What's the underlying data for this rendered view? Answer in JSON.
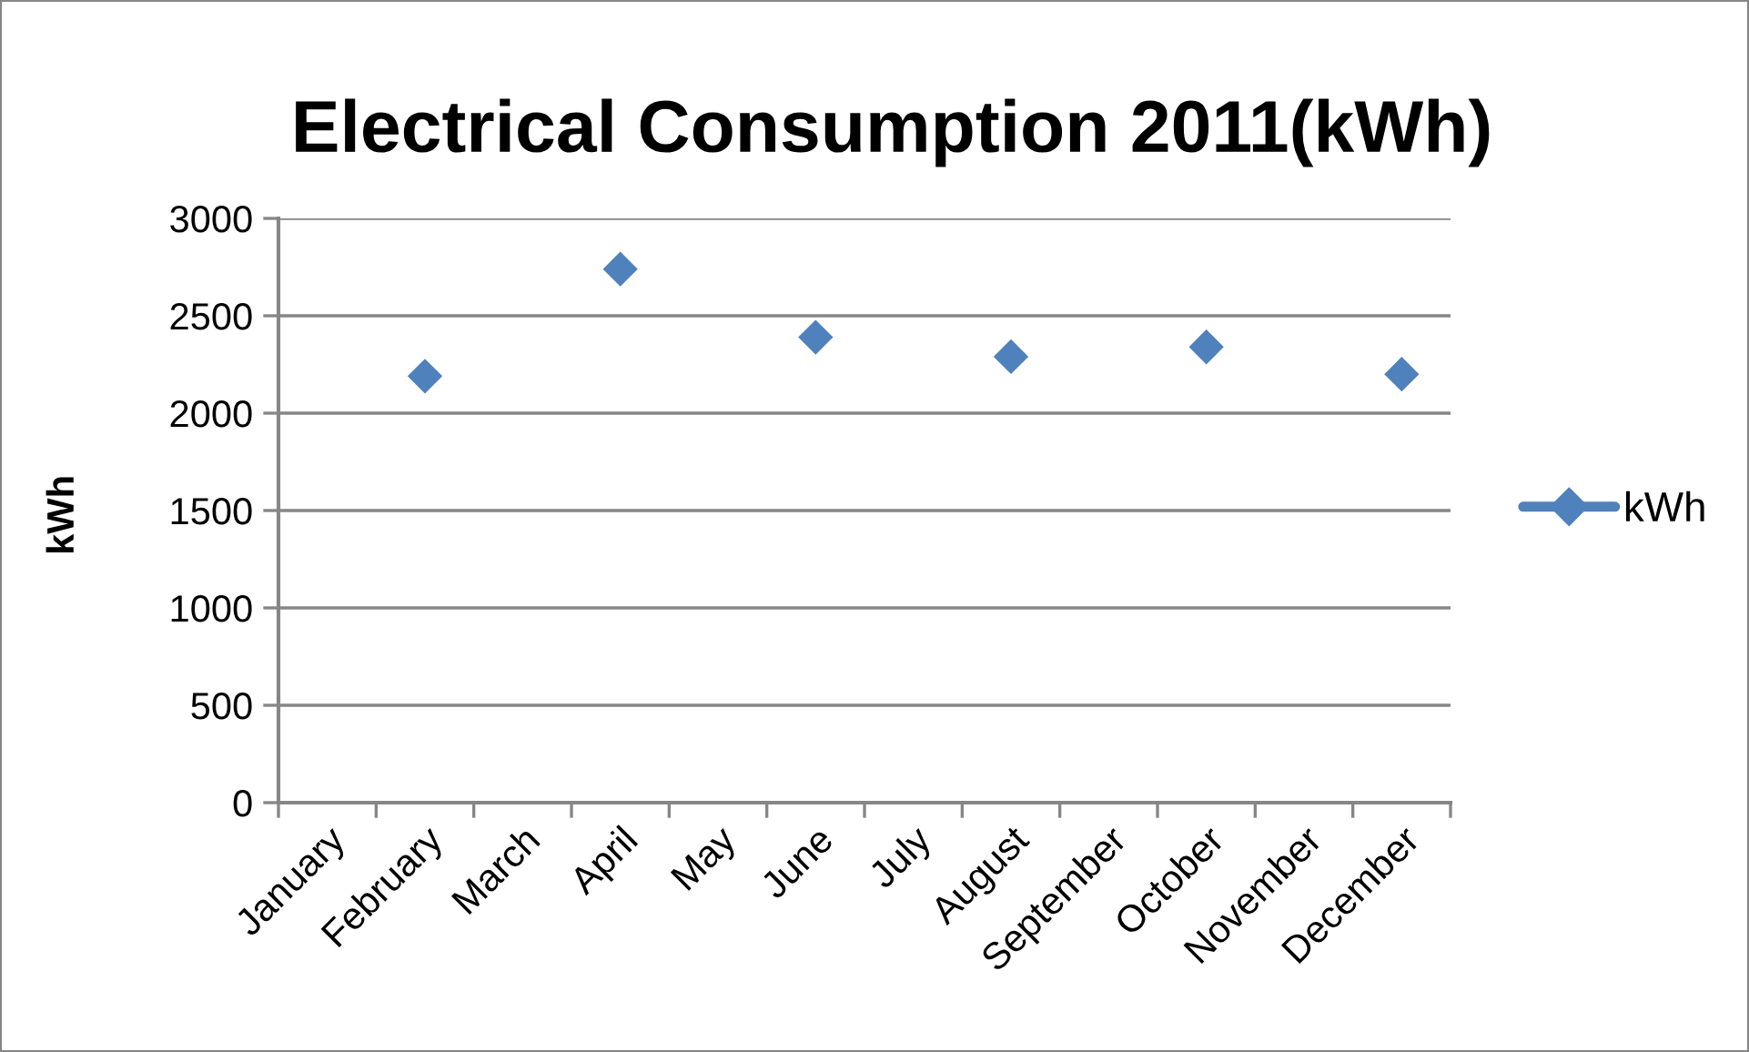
{
  "chart_data": {
    "type": "scatter",
    "title": "Electrical Consumption 2011(kWh)",
    "ylabel": "kWh",
    "categories": [
      "January",
      "February",
      "March",
      "April",
      "May",
      "June",
      "July",
      "August",
      "September",
      "October",
      "November",
      "December"
    ],
    "series": [
      {
        "name": "kWh",
        "color": "#4f81bd",
        "values": [
          null,
          2190,
          null,
          2740,
          null,
          2390,
          null,
          2290,
          null,
          2340,
          null,
          2200
        ]
      }
    ],
    "ylim": [
      0,
      3000
    ],
    "yticks": [
      0,
      500,
      1000,
      1500,
      2000,
      2500,
      3000
    ],
    "grid": "y",
    "legend": "right",
    "marker": "diamond",
    "line_style": "solid"
  }
}
